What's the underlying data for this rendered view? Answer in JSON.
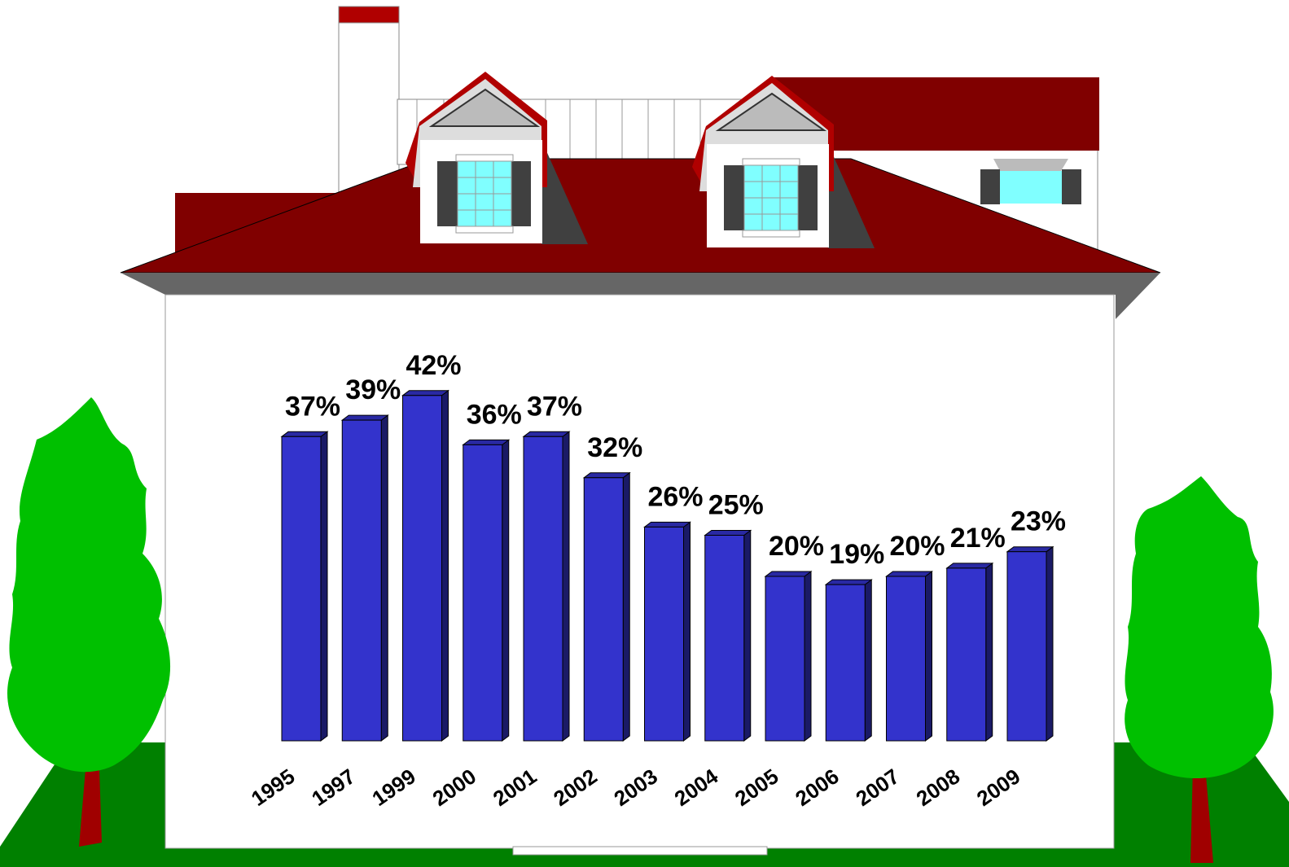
{
  "chart_data": {
    "type": "bar",
    "categories": [
      "1995",
      "1997",
      "1999",
      "2000",
      "2001",
      "2002",
      "2003",
      "2004",
      "2005",
      "2006",
      "2007",
      "2008",
      "2009"
    ],
    "values": [
      37,
      39,
      42,
      36,
      37,
      32,
      26,
      25,
      20,
      19,
      20,
      21,
      23
    ],
    "value_labels": [
      "37%",
      "39%",
      "42%",
      "36%",
      "37%",
      "32%",
      "26%",
      "25%",
      "20%",
      "19%",
      "20%",
      "21%",
      "23%"
    ],
    "color": "#3333cc"
  }
}
